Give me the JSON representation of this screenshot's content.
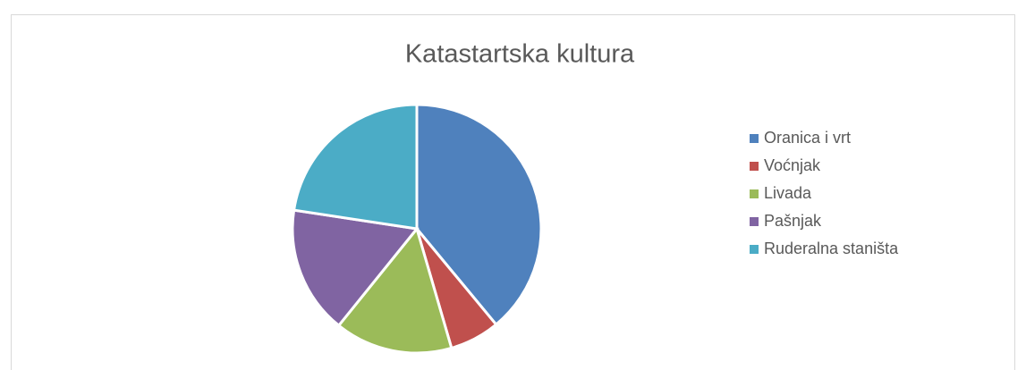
{
  "chart_data": {
    "type": "pie",
    "title": "Katastartska kultura",
    "categories": [
      "Oranica i vrt",
      "Voćnjak",
      "Livada",
      "Pašnjak",
      "Ruderalna staništa"
    ],
    "values": [
      39,
      6.5,
      15.3,
      16.6,
      22.6
    ],
    "colors": [
      "#4f81bd",
      "#c0504d",
      "#9bbb59",
      "#8064a2",
      "#4bacc6"
    ],
    "legend": "right"
  }
}
